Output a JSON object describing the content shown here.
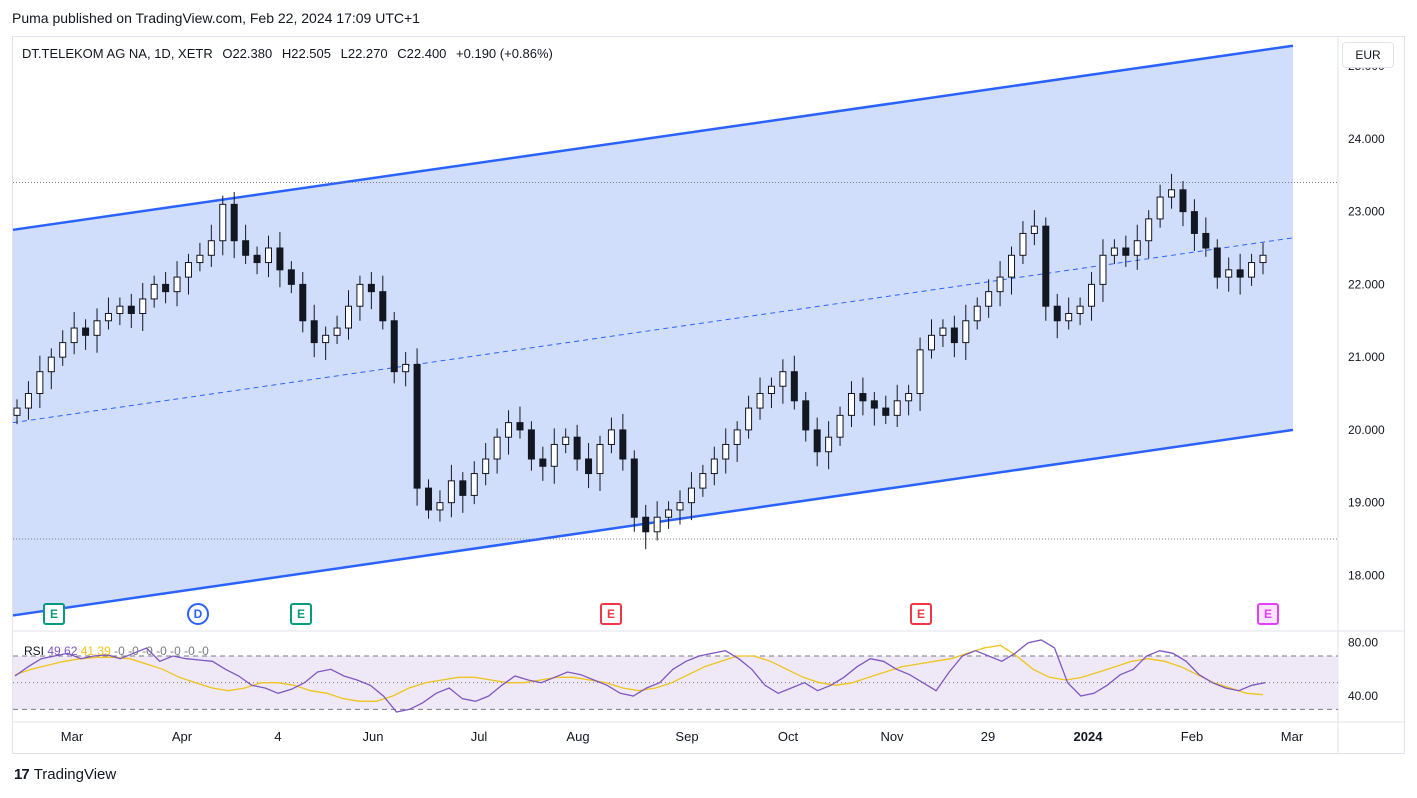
{
  "header": {
    "published": "Puma published on TradingView.com, Feb 22, 2024 17:09 UTC+1"
  },
  "legend": {
    "symbol": "DT.TELEKOM AG NA, 1D, XETR",
    "open": "O22.380",
    "high": "H22.505",
    "low": "L22.270",
    "close": "C22.400",
    "change": "+0.190 (+0.86%)"
  },
  "currency": "EUR",
  "rsi_legend": {
    "name": "RSI",
    "value": "49.62",
    "ma": "41.39",
    "extra": "-0 -0 -0 -0 -0 -0 -0"
  },
  "footer": {
    "brand": "TradingView"
  },
  "events": [
    {
      "letter": "E",
      "kind": "earnings-green",
      "color": "#089981"
    },
    {
      "letter": "D",
      "kind": "dividend",
      "color": "#2962ff"
    },
    {
      "letter": "E",
      "kind": "earnings-green",
      "color": "#089981"
    },
    {
      "letter": "E",
      "kind": "earnings-red",
      "color": "#f23645"
    },
    {
      "letter": "E",
      "kind": "earnings-red",
      "color": "#f23645"
    },
    {
      "letter": "E",
      "kind": "earnings-upcoming",
      "color": "#e040fb"
    }
  ],
  "colors": {
    "up": "#089981",
    "down": "#f23645",
    "candle": "#131722",
    "channel": "#2962ff",
    "channel_fill": "#cfdcfb",
    "rsi": "#7e57c2",
    "rsi_ma": "#f0c419"
  },
  "chart_data": [
    {
      "type": "candlestick",
      "title": "DT.TELEKOM AG NA, 1D, XETR",
      "x_ticks": [
        "Mar",
        "Apr",
        "4",
        "Jun",
        "Jul",
        "Aug",
        "Sep",
        "Oct",
        "Nov",
        "29",
        "2024",
        "Feb",
        "Mar"
      ],
      "y_ticks": [
        "25.000",
        "24.000",
        "23.000",
        "22.000",
        "21.000",
        "20.000",
        "19.000",
        "18.000"
      ],
      "ylim": [
        17.25,
        25.4
      ],
      "close_series": [
        20.3,
        20.5,
        20.8,
        21.0,
        21.2,
        21.4,
        21.3,
        21.5,
        21.6,
        21.7,
        21.6,
        21.8,
        22.0,
        21.9,
        22.1,
        22.3,
        22.4,
        22.6,
        23.1,
        22.6,
        22.4,
        22.3,
        22.5,
        22.2,
        22.0,
        21.5,
        21.2,
        21.3,
        21.4,
        21.7,
        22.0,
        21.9,
        21.5,
        20.8,
        20.9,
        19.2,
        18.9,
        19.0,
        19.3,
        19.1,
        19.4,
        19.6,
        19.9,
        20.1,
        20.0,
        19.6,
        19.5,
        19.8,
        19.9,
        19.6,
        19.4,
        19.8,
        20.0,
        19.6,
        18.8,
        18.6,
        18.8,
        18.9,
        19.0,
        19.2,
        19.4,
        19.6,
        19.8,
        20.0,
        20.3,
        20.5,
        20.6,
        20.8,
        20.4,
        20.0,
        19.7,
        19.9,
        20.2,
        20.5,
        20.4,
        20.3,
        20.2,
        20.4,
        20.5,
        21.1,
        21.3,
        21.4,
        21.2,
        21.5,
        21.7,
        21.9,
        22.1,
        22.4,
        22.7,
        22.8,
        21.7,
        21.5,
        21.6,
        21.7,
        22.0,
        22.4,
        22.5,
        22.4,
        22.6,
        22.9,
        23.2,
        23.3,
        23.0,
        22.7,
        22.5,
        22.1,
        22.2,
        22.1,
        22.3,
        22.4
      ],
      "channel": {
        "upper_start": 22.75,
        "upper_end": 25.28,
        "lower_start": 17.45,
        "lower_end": 20.0,
        "mid_start": 20.1,
        "mid_end": 22.64
      },
      "reference_lines": [
        23.4,
        18.5
      ]
    },
    {
      "type": "line",
      "title": "RSI",
      "y_ticks": [
        "80.00",
        "40.00"
      ],
      "ylim": [
        22,
        88
      ],
      "bands": [
        70,
        50,
        30
      ],
      "rsi": [
        55,
        62,
        68,
        70,
        72,
        68,
        70,
        71,
        68,
        72,
        76,
        66,
        70,
        68,
        67,
        66,
        60,
        55,
        48,
        46,
        42,
        45,
        50,
        58,
        60,
        55,
        52,
        48,
        40,
        28,
        30,
        35,
        42,
        46,
        38,
        36,
        40,
        48,
        55,
        52,
        50,
        54,
        58,
        56,
        52,
        48,
        42,
        40,
        46,
        50,
        60,
        66,
        70,
        72,
        74,
        68,
        60,
        48,
        42,
        46,
        50,
        44,
        48,
        54,
        62,
        68,
        66,
        60,
        56,
        50,
        44,
        58,
        70,
        74,
        70,
        66,
        72,
        80,
        82,
        76,
        50,
        40,
        42,
        48,
        56,
        60,
        70,
        74,
        72,
        66,
        56,
        50,
        46,
        44,
        48,
        50
      ],
      "rsi_ma": [
        56,
        60,
        63,
        66,
        68,
        69,
        69,
        68,
        64,
        60,
        54,
        50,
        46,
        44,
        46,
        50,
        50,
        48,
        44,
        42,
        38,
        36,
        36,
        40,
        46,
        50,
        52,
        54,
        54,
        52,
        50,
        50,
        52,
        54,
        54,
        52,
        50,
        46,
        44,
        46,
        50,
        56,
        62,
        66,
        70,
        70,
        66,
        60,
        54,
        50,
        48,
        50,
        54,
        58,
        62,
        64,
        66,
        68,
        72,
        76,
        78,
        70,
        60,
        54,
        52,
        54,
        58,
        62,
        66,
        68,
        66,
        62,
        56,
        50,
        46,
        42,
        41
      ]
    }
  ]
}
